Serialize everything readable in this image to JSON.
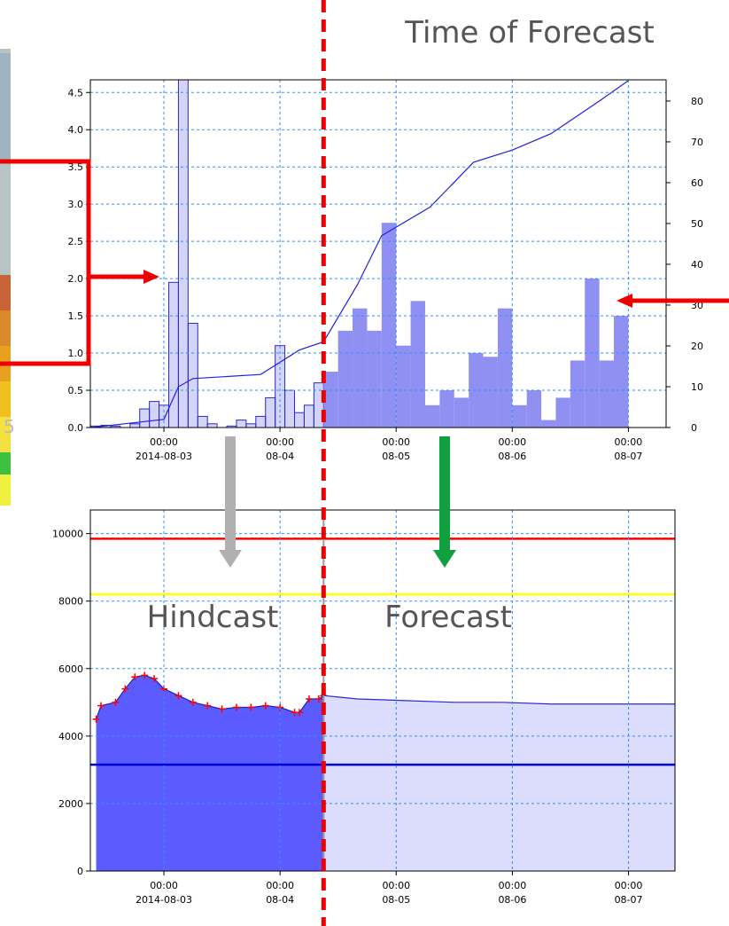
{
  "annotations": {
    "time_of_forecast": "Time of Forecast",
    "hindcast": "Hindcast",
    "forecast": "Forecast",
    "map_label": "5"
  },
  "forecast_time": 33,
  "chart_data": [
    {
      "type": "histogram",
      "xlim": [
        -15.2,
        103.8
      ],
      "ylim": [
        0,
        4.67
      ],
      "y2lim": [
        0,
        85.2
      ],
      "grid": true,
      "xticks": [
        {
          "value": 0,
          "label": "00:00",
          "sublabel": "2014-08-03"
        },
        {
          "value": 24,
          "label": "00:00",
          "sublabel": "08-04"
        },
        {
          "value": 48,
          "label": "00:00",
          "sublabel": "08-05"
        },
        {
          "value": 72,
          "label": "00:00",
          "sublabel": "08-06"
        },
        {
          "value": 96,
          "label": "00:00",
          "sublabel": "08-07"
        }
      ],
      "yticks": [
        {
          "value": 0,
          "label": "0.0"
        },
        {
          "value": 0.5,
          "label": "0.5"
        },
        {
          "value": 1,
          "label": "1.0"
        },
        {
          "value": 1.5,
          "label": "1.5"
        },
        {
          "value": 2,
          "label": "2.0"
        },
        {
          "value": 2.5,
          "label": "2.5"
        },
        {
          "value": 3,
          "label": "3.0"
        },
        {
          "value": 3.5,
          "label": "3.5"
        },
        {
          "value": 4,
          "label": "4.0"
        },
        {
          "value": 4.5,
          "label": "4.5"
        }
      ],
      "y2ticks": [
        0,
        10,
        20,
        30,
        40,
        50,
        60,
        70,
        80
      ],
      "series": [
        {
          "color": "#2a2ad0",
          "outline": true,
          "bins": [
            -15,
            -13,
            -11,
            -9,
            -7,
            -5,
            -3,
            -1,
            1,
            3,
            5,
            7,
            9,
            11,
            13,
            15,
            17,
            19,
            21,
            23,
            25,
            27,
            29,
            31,
            33
          ],
          "values": [
            0.02,
            0.03,
            0.02,
            0,
            0.05,
            0.25,
            0.35,
            0.3,
            1.95,
            5.0,
            1.4,
            0.15,
            0.05,
            0,
            0.02,
            0.1,
            0.05,
            0.15,
            0.4,
            1.1,
            0.5,
            0.2,
            0.3,
            0.6
          ]
        },
        {
          "color": "#9090f2",
          "outline": false,
          "bins": [
            33,
            36,
            39,
            42,
            45,
            48,
            51,
            54,
            57,
            60,
            63,
            66,
            69,
            72,
            75,
            78,
            81,
            84,
            87,
            90,
            93,
            96
          ],
          "values": [
            0.75,
            1.3,
            1.6,
            1.3,
            2.75,
            1.1,
            1.7,
            0.3,
            0.5,
            0.4,
            1.0,
            0.95,
            1.6,
            0.3,
            0.5,
            0.1,
            0.4,
            0.9,
            2.0,
            0.9,
            1.5
          ]
        },
        {
          "color": "#2020e0",
          "axis": "y2",
          "x": [
            -15,
            0,
            3,
            6,
            20,
            28,
            33,
            40,
            45,
            55,
            64,
            72,
            80,
            90,
            96
          ],
          "values": [
            0,
            2,
            10,
            12,
            13,
            19,
            21,
            35,
            47,
            54,
            65,
            68,
            72,
            80,
            85
          ]
        }
      ]
    },
    {
      "type": "area",
      "xlim": [
        -15.2,
        105.6
      ],
      "ylim": [
        0,
        10700
      ],
      "grid": true,
      "xticks": [
        {
          "value": 0,
          "label": "00:00",
          "sublabel": "2014-08-03"
        },
        {
          "value": 24,
          "label": "00:00",
          "sublabel": "08-04"
        },
        {
          "value": 48,
          "label": "00:00",
          "sublabel": "08-05"
        },
        {
          "value": 72,
          "label": "00:00",
          "sublabel": "08-06"
        },
        {
          "value": 96,
          "label": "00:00",
          "sublabel": "08-07"
        }
      ],
      "yticks": [
        0,
        2000,
        4000,
        6000,
        8000,
        10000
      ],
      "hlines": [
        {
          "value": 9850,
          "color": "#ff0000"
        },
        {
          "value": 8200,
          "color": "#ffff00"
        },
        {
          "value": 3150,
          "color": "#0000dd"
        }
      ],
      "series": [
        {
          "color": "#5b5bff",
          "line_color": "#2020c0",
          "marker": "+",
          "marker_color": "#ff0000",
          "x": [
            -14,
            -13,
            -10,
            -8,
            -6,
            -4,
            -2,
            0,
            3,
            6,
            9,
            12,
            15,
            18,
            21,
            24,
            27,
            28,
            30,
            32,
            33
          ],
          "values": [
            4500,
            4900,
            5000,
            5400,
            5750,
            5800,
            5700,
            5400,
            5200,
            5000,
            4900,
            4800,
            4850,
            4850,
            4900,
            4850,
            4700,
            4700,
            5100,
            5100,
            5200
          ]
        },
        {
          "color": "#dcdcfc",
          "line_color": "#2a2ad0",
          "x": [
            33,
            40,
            50,
            60,
            70,
            80,
            90,
            105.6
          ],
          "values": [
            5200,
            5100,
            5050,
            5000,
            5000,
            4950,
            4950,
            4950
          ]
        }
      ]
    }
  ]
}
